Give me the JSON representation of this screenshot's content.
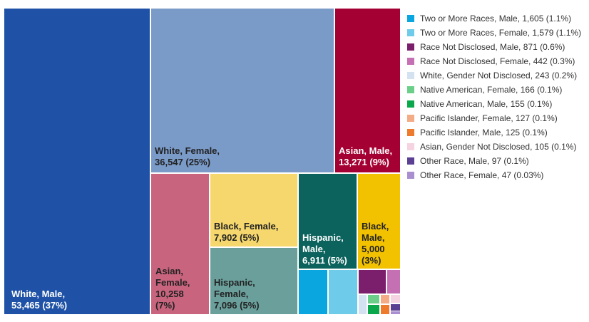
{
  "chart_data": {
    "type": "treemap",
    "title": "",
    "items": [
      {
        "label": "White, Male",
        "value": 53465,
        "pct": "37%",
        "color": "#1f52a6",
        "text_lines": [
          "White, Male,",
          "53,465 (37%)"
        ],
        "dark_text": false
      },
      {
        "label": "White, Female",
        "value": 36547,
        "pct": "25%",
        "color": "#7a9ac8",
        "text_lines": [
          "White, Female,",
          "36,547 (25%)"
        ],
        "dark_text": true
      },
      {
        "label": "Asian, Male",
        "value": 13271,
        "pct": "9%",
        "color": "#a50033",
        "text_lines": [
          "Asian, Male,",
          "13,271 (9%)"
        ],
        "dark_text": false
      },
      {
        "label": "Asian, Female",
        "value": 10258,
        "pct": "7%",
        "color": "#c9647f",
        "text_lines": [
          "Asian,",
          "Female,",
          "10,258",
          "(7%)"
        ],
        "dark_text": true
      },
      {
        "label": "Black, Female",
        "value": 7902,
        "pct": "5%",
        "color": "#f5d76e",
        "text_lines": [
          "Black, Female,",
          "7,902 (5%)"
        ],
        "dark_text": true
      },
      {
        "label": "Hispanic, Female",
        "value": 7096,
        "pct": "5%",
        "color": "#6a9f9b",
        "text_lines": [
          "Hispanic,",
          "Female,",
          "7,096 (5%)"
        ],
        "dark_text": true
      },
      {
        "label": "Hispanic, Male",
        "value": 6911,
        "pct": "5%",
        "color": "#0c625c",
        "text_lines": [
          "Hispanic,",
          "Male,",
          "6,911 (5%)"
        ],
        "dark_text": false
      },
      {
        "label": "Black, Male",
        "value": 5000,
        "pct": "3%",
        "color": "#f2c200",
        "text_lines": [
          "Black,",
          "Male,",
          "5,000",
          "(3%)"
        ],
        "dark_text": true
      },
      {
        "label": "Two or More Races, Male",
        "value": 1605,
        "pct": "1.1%",
        "color": "#0aa6e0",
        "text_lines": [],
        "dark_text": false
      },
      {
        "label": "Two or More Races, Female",
        "value": 1579,
        "pct": "1.1%",
        "color": "#6fcbea",
        "text_lines": [],
        "dark_text": false
      },
      {
        "label": "Race Not Disclosed, Male",
        "value": 871,
        "pct": "0.6%",
        "color": "#7b1e6c",
        "text_lines": [],
        "dark_text": false
      },
      {
        "label": "Race Not Disclosed, Female",
        "value": 442,
        "pct": "0.3%",
        "color": "#c670b4",
        "text_lines": [],
        "dark_text": false
      },
      {
        "label": "White, Gender Not Disclosed",
        "value": 243,
        "pct": "0.2%",
        "color": "#d3e1f1",
        "text_lines": [],
        "dark_text": false
      },
      {
        "label": "Native American, Female",
        "value": 166,
        "pct": "0.1%",
        "color": "#6bcf8a",
        "text_lines": [],
        "dark_text": false
      },
      {
        "label": "Native American, Male",
        "value": 155,
        "pct": "0.1%",
        "color": "#0aa84a",
        "text_lines": [],
        "dark_text": false
      },
      {
        "label": "Pacific Islander, Female",
        "value": 127,
        "pct": "0.1%",
        "color": "#f3ac86",
        "text_lines": [],
        "dark_text": false
      },
      {
        "label": "Pacific Islander, Male",
        "value": 125,
        "pct": "0.1%",
        "color": "#ee7a2e",
        "text_lines": [],
        "dark_text": false
      },
      {
        "label": "Asian, Gender Not Disclosed",
        "value": 105,
        "pct": "0.1%",
        "color": "#f5d3e0",
        "text_lines": [],
        "dark_text": false
      },
      {
        "label": "Other Race, Male",
        "value": 97,
        "pct": "0.1%",
        "color": "#5a3f92",
        "text_lines": [],
        "dark_text": false
      },
      {
        "label": "Other Race, Female",
        "value": 47,
        "pct": "0.03%",
        "color": "#a98fd0",
        "text_lines": [],
        "dark_text": false
      }
    ],
    "legend": {
      "placement": "right",
      "entries": [
        {
          "text": "Two or More Races, Male, 1,605 (1.1%)",
          "color": "#0aa6e0"
        },
        {
          "text": "Two or More Races, Female, 1,579 (1.1%)",
          "color": "#6fcbea"
        },
        {
          "text": "Race Not Disclosed, Male, 871 (0.6%)",
          "color": "#7b1e6c"
        },
        {
          "text": "Race Not Disclosed, Female, 442 (0.3%)",
          "color": "#c670b4"
        },
        {
          "text": "White, Gender Not Disclosed, 243 (0.2%)",
          "color": "#d3e1f1"
        },
        {
          "text": "Native American, Female, 166 (0.1%)",
          "color": "#6bcf8a"
        },
        {
          "text": "Native American, Male, 155 (0.1%)",
          "color": "#0aa84a"
        },
        {
          "text": "Pacific Islander, Female, 127 (0.1%)",
          "color": "#f3ac86"
        },
        {
          "text": "Pacific Islander, Male, 125 (0.1%)",
          "color": "#ee7a2e"
        },
        {
          "text": "Asian, Gender Not Disclosed, 105 (0.1%)",
          "color": "#f5d3e0"
        },
        {
          "text": "Other Race, Male, 97 (0.1%)",
          "color": "#5a3f92"
        },
        {
          "text": "Other Race, Female, 47 (0.03%)",
          "color": "#a98fd0"
        }
      ]
    }
  }
}
